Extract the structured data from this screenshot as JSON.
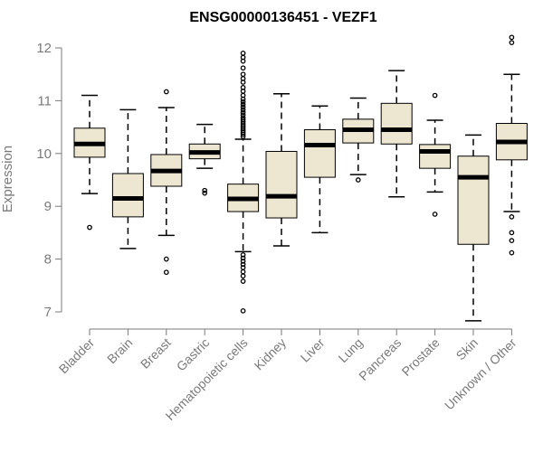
{
  "chart_data": {
    "type": "boxplot",
    "title": "ENSG00000136451 - VEZF1",
    "xlabel": "",
    "ylabel": "Expression",
    "ylim": [
      6.75,
      12.3
    ],
    "yticks": [
      "7",
      "8",
      "9",
      "10",
      "11",
      "12"
    ],
    "grid": false,
    "colors": {
      "box_fill": "#ede6d0",
      "stroke": "#000000",
      "axis": "#7a7a7a"
    },
    "categories": [
      "Bladder",
      "Brain",
      "Breast",
      "Gastric",
      "Hematopoietic cells",
      "Kidney",
      "Liver",
      "Lung",
      "Pancreas",
      "Prostate",
      "Skin",
      "Unknown / Other"
    ],
    "boxes": [
      {
        "q1": 9.93,
        "median": 10.18,
        "q3": 10.48,
        "whisker_low": 9.24,
        "whisker_high": 11.1,
        "outliers": [
          8.6
        ]
      },
      {
        "q1": 8.8,
        "median": 9.15,
        "q3": 9.62,
        "whisker_low": 8.2,
        "whisker_high": 10.83,
        "outliers": []
      },
      {
        "q1": 9.38,
        "median": 9.67,
        "q3": 9.98,
        "whisker_low": 8.45,
        "whisker_high": 10.87,
        "outliers": [
          11.17,
          8.0,
          7.75
        ]
      },
      {
        "q1": 9.9,
        "median": 10.02,
        "q3": 10.18,
        "whisker_low": 9.72,
        "whisker_high": 10.55,
        "outliers": [
          9.3,
          9.25
        ]
      },
      {
        "q1": 8.9,
        "median": 9.14,
        "q3": 9.42,
        "whisker_low": 8.14,
        "whisker_high": 10.27,
        "outliers": [
          11.9,
          11.82,
          11.75,
          11.62,
          11.5,
          11.42,
          11.35,
          11.25,
          11.18,
          11.1,
          11.03,
          10.98,
          10.93,
          10.88,
          10.83,
          10.78,
          10.73,
          10.68,
          10.64,
          10.6,
          10.56,
          10.52,
          10.48,
          10.44,
          10.4,
          10.36,
          10.32,
          8.08,
          8.02,
          7.96,
          7.9,
          7.84,
          7.76,
          7.68,
          7.58,
          7.02
        ]
      },
      {
        "q1": 8.78,
        "median": 9.19,
        "q3": 10.04,
        "whisker_low": 8.25,
        "whisker_high": 11.13,
        "outliers": []
      },
      {
        "q1": 9.55,
        "median": 10.16,
        "q3": 10.45,
        "whisker_low": 8.5,
        "whisker_high": 10.9,
        "outliers": []
      },
      {
        "q1": 10.2,
        "median": 10.45,
        "q3": 10.65,
        "whisker_low": 9.6,
        "whisker_high": 11.05,
        "outliers": [
          9.5
        ]
      },
      {
        "q1": 10.18,
        "median": 10.45,
        "q3": 10.95,
        "whisker_low": 9.18,
        "whisker_high": 11.57,
        "outliers": []
      },
      {
        "q1": 9.72,
        "median": 10.04,
        "q3": 10.17,
        "whisker_low": 9.27,
        "whisker_high": 10.63,
        "outliers": [
          11.1,
          8.85
        ]
      },
      {
        "q1": 8.28,
        "median": 9.55,
        "q3": 9.95,
        "whisker_low": 6.83,
        "whisker_high": 10.35,
        "outliers": []
      },
      {
        "q1": 9.88,
        "median": 10.22,
        "q3": 10.57,
        "whisker_low": 8.9,
        "whisker_high": 11.5,
        "outliers": [
          12.2,
          12.1,
          8.8,
          8.5,
          8.35,
          8.12
        ]
      }
    ]
  }
}
